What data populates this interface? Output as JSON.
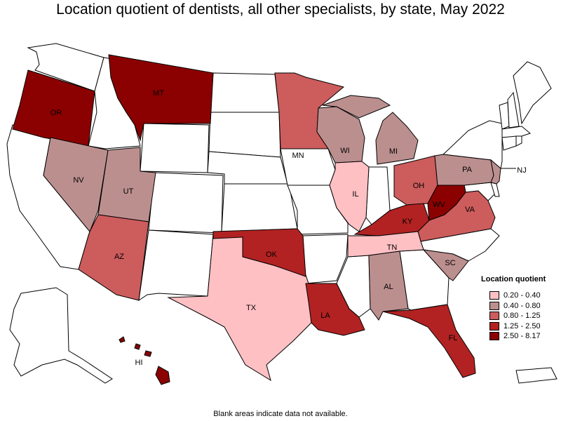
{
  "title": "Location quotient of dentists, all other specialists, by state, May 2022",
  "footnote": "Blank areas indicate data not available.",
  "legend": {
    "title": "Location quotient",
    "items": [
      {
        "label": "0.20 - 0.40",
        "color": "#ffc0c4"
      },
      {
        "label": "0.40 - 0.80",
        "color": "#bc8f8f"
      },
      {
        "label": "0.80 - 1.25",
        "color": "#cd5c5c"
      },
      {
        "label": "1.25 - 2.50",
        "color": "#b22222"
      },
      {
        "label": "2.50 - 8.17",
        "color": "#8b0000"
      }
    ]
  },
  "states": {
    "OR": {
      "label": "OR",
      "class": "2.50 - 8.17"
    },
    "MT": {
      "label": "MT",
      "class": "2.50 - 8.17"
    },
    "NV": {
      "label": "NV",
      "class": "0.40 - 0.80"
    },
    "UT": {
      "label": "UT",
      "class": "0.40 - 0.80"
    },
    "AZ": {
      "label": "AZ",
      "class": "0.80 - 1.25"
    },
    "TX": {
      "label": "TX",
      "class": "0.20 - 0.40"
    },
    "OK": {
      "label": "OK",
      "class": "1.25 - 2.50"
    },
    "MN": {
      "label": "MN",
      "class": "0.80 - 1.25"
    },
    "WI": {
      "label": "WI",
      "class": "0.40 - 0.80"
    },
    "IL": {
      "label": "IL",
      "class": "0.20 - 0.40"
    },
    "MI": {
      "label": "MI",
      "class": "0.40 - 0.80"
    },
    "OH": {
      "label": "OH",
      "class": "0.80 - 1.25"
    },
    "KY": {
      "label": "KY",
      "class": "1.25 - 2.50"
    },
    "WV": {
      "label": "WV",
      "class": "2.50 - 8.17"
    },
    "VA": {
      "label": "VA",
      "class": "0.80 - 1.25"
    },
    "PA": {
      "label": "PA",
      "class": "0.40 - 0.80"
    },
    "NJ": {
      "label": "NJ",
      "class": "0.40 - 0.80"
    },
    "TN": {
      "label": "TN",
      "class": "0.20 - 0.40"
    },
    "SC": {
      "label": "SC",
      "class": "0.40 - 0.80"
    },
    "AL": {
      "label": "AL",
      "class": "0.40 - 0.80"
    },
    "LA": {
      "label": "LA",
      "class": "1.25 - 2.50"
    },
    "FL": {
      "label": "FL",
      "class": "1.25 - 2.50"
    },
    "HI": {
      "label": "HI",
      "class": "2.50 - 8.17"
    }
  }
}
